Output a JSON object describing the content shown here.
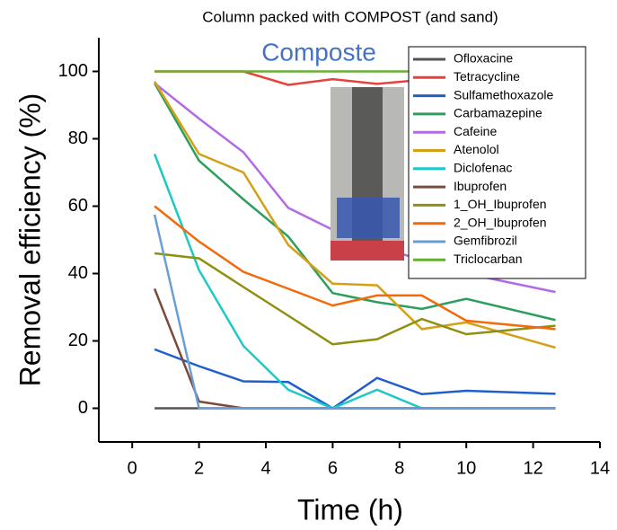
{
  "chart_data": {
    "type": "line",
    "title": "Column packed with COMPOST (and sand)",
    "annotation": "Composte",
    "x_label": "Time (h)",
    "y_label": "Removal efficiency (%)",
    "x": [
      0.67,
      2,
      3.33,
      4.67,
      6,
      7.33,
      8.67,
      10,
      12.67
    ],
    "xlim": [
      -1,
      14
    ],
    "xticks": [
      0,
      2,
      4,
      6,
      8,
      10,
      12,
      14
    ],
    "ylim": [
      -10,
      110
    ],
    "yticks": [
      0,
      20,
      40,
      60,
      80,
      100
    ],
    "legend": "top-right",
    "series": [
      {
        "name": "Ofloxacine",
        "color": "#555555",
        "values": [
          0,
          0,
          0,
          0,
          0,
          0,
          0,
          0,
          0
        ]
      },
      {
        "name": "Tetracycline",
        "color": "#e8413c",
        "values": [
          100,
          100,
          100,
          96,
          97.7,
          96.3,
          97.5,
          97,
          97
        ]
      },
      {
        "name": "Sulfamethoxazole",
        "color": "#1f5fcc",
        "values": [
          17.5,
          12.5,
          8,
          7.8,
          0,
          9,
          4.2,
          5.2,
          4.3
        ]
      },
      {
        "name": "Carbamazepine",
        "color": "#2e9e5e",
        "values": [
          96.5,
          73.5,
          62,
          51,
          34.2,
          31.5,
          29.5,
          32.5,
          26.2
        ]
      },
      {
        "name": "Cafeine",
        "color": "#b36ae2",
        "values": [
          96.5,
          86,
          76,
          59.5,
          53,
          48,
          44,
          40,
          34.5
        ]
      },
      {
        "name": "Atenolol",
        "color": "#d4a017",
        "values": [
          97,
          75.5,
          70,
          48.5,
          37,
          36.5,
          23.5,
          25.5,
          18
        ]
      },
      {
        "name": "Diclofenac",
        "color": "#1ec8c8",
        "values": [
          75.5,
          41,
          18.5,
          5.5,
          0,
          5.5,
          0,
          0,
          0
        ]
      },
      {
        "name": "Ibuprofen",
        "color": "#7b4a3a",
        "values": [
          35.5,
          2,
          0,
          0,
          0,
          0,
          0,
          0,
          0
        ]
      },
      {
        "name": "1_OH_Ibuprofen",
        "color": "#8f8f10",
        "values": [
          46,
          44.5,
          36,
          27.5,
          19,
          20.5,
          26.5,
          22,
          24.5
        ]
      },
      {
        "name": "2_OH_Ibuprofen",
        "color": "#f26a0a",
        "values": [
          60,
          49.5,
          40.5,
          35.5,
          30.5,
          33.5,
          33.5,
          26,
          23.5
        ]
      },
      {
        "name": "Gemfibrozil",
        "color": "#6a9fd4",
        "values": [
          57.5,
          0,
          0,
          0,
          0,
          0,
          0,
          0,
          0
        ]
      },
      {
        "name": "Triclocarban",
        "color": "#66b032",
        "values": [
          100,
          100,
          100,
          100,
          100,
          100,
          100,
          100,
          100
        ]
      }
    ]
  }
}
